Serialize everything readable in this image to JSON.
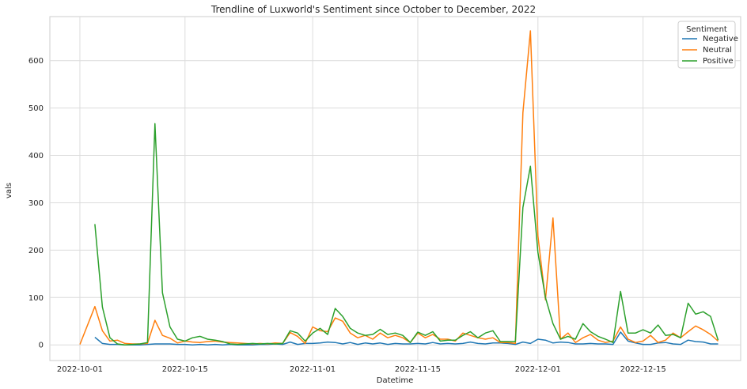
{
  "chart_data": {
    "type": "line",
    "title": "Trendline of Luxworld's Sentiment since October to December, 2022",
    "xlabel": "Datetime",
    "ylabel": "vals",
    "x_ticks": [
      "2022-10-01",
      "2022-10-15",
      "2022-11-01",
      "2022-11-15",
      "2022-12-01",
      "2022-12-15"
    ],
    "y_ticks": [
      0,
      100,
      200,
      300,
      400,
      500,
      600
    ],
    "xlim": [
      "2022-09-27",
      "2022-12-28"
    ],
    "ylim": [
      -33,
      693
    ],
    "grid": true,
    "legend": {
      "title": "Sentiment",
      "placement": "top-right"
    },
    "series": [
      {
        "name": "Negative",
        "color": "#1f77b4",
        "points": [
          [
            "2022-10-03",
            16
          ],
          [
            "2022-10-04",
            3
          ],
          [
            "2022-10-05",
            1
          ],
          [
            "2022-10-06",
            1
          ],
          [
            "2022-10-07",
            0
          ],
          [
            "2022-10-08",
            0
          ],
          [
            "2022-10-09",
            0
          ],
          [
            "2022-10-10",
            1
          ],
          [
            "2022-10-11",
            2
          ],
          [
            "2022-10-12",
            2
          ],
          [
            "2022-10-13",
            2
          ],
          [
            "2022-10-14",
            1
          ],
          [
            "2022-10-15",
            1
          ],
          [
            "2022-10-16",
            0
          ],
          [
            "2022-10-17",
            1
          ],
          [
            "2022-10-18",
            0
          ],
          [
            "2022-10-19",
            1
          ],
          [
            "2022-10-20",
            0
          ],
          [
            "2022-10-21",
            1
          ],
          [
            "2022-10-22",
            0
          ],
          [
            "2022-10-23",
            0
          ],
          [
            "2022-10-24",
            0
          ],
          [
            "2022-10-25",
            1
          ],
          [
            "2022-10-26",
            1
          ],
          [
            "2022-10-27",
            2
          ],
          [
            "2022-10-28",
            1
          ],
          [
            "2022-10-29",
            6
          ],
          [
            "2022-10-30",
            1
          ],
          [
            "2022-10-31",
            3
          ],
          [
            "2022-11-01",
            3
          ],
          [
            "2022-11-02",
            4
          ],
          [
            "2022-11-03",
            6
          ],
          [
            "2022-11-04",
            5
          ],
          [
            "2022-11-05",
            2
          ],
          [
            "2022-11-06",
            5
          ],
          [
            "2022-11-07",
            1
          ],
          [
            "2022-11-08",
            4
          ],
          [
            "2022-11-09",
            2
          ],
          [
            "2022-11-10",
            4
          ],
          [
            "2022-11-11",
            1
          ],
          [
            "2022-11-12",
            3
          ],
          [
            "2022-11-13",
            2
          ],
          [
            "2022-11-14",
            2
          ],
          [
            "2022-11-15",
            3
          ],
          [
            "2022-11-16",
            2
          ],
          [
            "2022-11-17",
            5
          ],
          [
            "2022-11-18",
            2
          ],
          [
            "2022-11-19",
            3
          ],
          [
            "2022-11-20",
            2
          ],
          [
            "2022-11-21",
            3
          ],
          [
            "2022-11-22",
            6
          ],
          [
            "2022-11-23",
            3
          ],
          [
            "2022-11-24",
            2
          ],
          [
            "2022-11-25",
            4
          ],
          [
            "2022-11-26",
            4
          ],
          [
            "2022-11-27",
            3
          ],
          [
            "2022-11-28",
            1
          ],
          [
            "2022-11-29",
            6
          ],
          [
            "2022-11-30",
            3
          ],
          [
            "2022-12-01",
            12
          ],
          [
            "2022-12-02",
            10
          ],
          [
            "2022-12-03",
            4
          ],
          [
            "2022-12-04",
            6
          ],
          [
            "2022-12-05",
            5
          ],
          [
            "2022-12-06",
            2
          ],
          [
            "2022-12-07",
            2
          ],
          [
            "2022-12-08",
            3
          ],
          [
            "2022-12-09",
            2
          ],
          [
            "2022-12-10",
            2
          ],
          [
            "2022-12-11",
            1
          ],
          [
            "2022-12-12",
            27
          ],
          [
            "2022-12-13",
            8
          ],
          [
            "2022-12-14",
            4
          ],
          [
            "2022-12-15",
            1
          ],
          [
            "2022-12-16",
            1
          ],
          [
            "2022-12-17",
            4
          ],
          [
            "2022-12-18",
            5
          ],
          [
            "2022-12-19",
            2
          ],
          [
            "2022-12-20",
            1
          ],
          [
            "2022-12-21",
            10
          ],
          [
            "2022-12-22",
            7
          ],
          [
            "2022-12-23",
            6
          ],
          [
            "2022-12-24",
            2
          ],
          [
            "2022-12-25",
            2
          ]
        ]
      },
      {
        "name": "Neutral",
        "color": "#ff7f0e",
        "points": [
          [
            "2022-10-01",
            1
          ],
          [
            "2022-10-03",
            81
          ],
          [
            "2022-10-04",
            30
          ],
          [
            "2022-10-05",
            8
          ],
          [
            "2022-10-06",
            10
          ],
          [
            "2022-10-07",
            3
          ],
          [
            "2022-10-08",
            2
          ],
          [
            "2022-10-09",
            2
          ],
          [
            "2022-10-10",
            3
          ],
          [
            "2022-10-11",
            52
          ],
          [
            "2022-10-12",
            20
          ],
          [
            "2022-10-13",
            14
          ],
          [
            "2022-10-14",
            4
          ],
          [
            "2022-10-15",
            8
          ],
          [
            "2022-10-16",
            6
          ],
          [
            "2022-10-17",
            5
          ],
          [
            "2022-10-18",
            7
          ],
          [
            "2022-10-19",
            8
          ],
          [
            "2022-10-20",
            6
          ],
          [
            "2022-10-21",
            5
          ],
          [
            "2022-10-22",
            4
          ],
          [
            "2022-10-23",
            3
          ],
          [
            "2022-10-24",
            2
          ],
          [
            "2022-10-25",
            3
          ],
          [
            "2022-10-26",
            2
          ],
          [
            "2022-10-27",
            4
          ],
          [
            "2022-10-28",
            3
          ],
          [
            "2022-10-29",
            26
          ],
          [
            "2022-10-30",
            18
          ],
          [
            "2022-10-31",
            3
          ],
          [
            "2022-11-01",
            38
          ],
          [
            "2022-11-02",
            30
          ],
          [
            "2022-11-03",
            28
          ],
          [
            "2022-11-04",
            57
          ],
          [
            "2022-11-05",
            50
          ],
          [
            "2022-11-06",
            25
          ],
          [
            "2022-11-07",
            15
          ],
          [
            "2022-11-08",
            20
          ],
          [
            "2022-11-09",
            12
          ],
          [
            "2022-11-10",
            25
          ],
          [
            "2022-11-11",
            15
          ],
          [
            "2022-11-12",
            20
          ],
          [
            "2022-11-13",
            15
          ],
          [
            "2022-11-14",
            5
          ],
          [
            "2022-11-15",
            25
          ],
          [
            "2022-11-16",
            15
          ],
          [
            "2022-11-17",
            22
          ],
          [
            "2022-11-18",
            12
          ],
          [
            "2022-11-19",
            12
          ],
          [
            "2022-11-20",
            8
          ],
          [
            "2022-11-21",
            25
          ],
          [
            "2022-11-22",
            20
          ],
          [
            "2022-11-23",
            15
          ],
          [
            "2022-11-24",
            12
          ],
          [
            "2022-11-25",
            15
          ],
          [
            "2022-11-26",
            5
          ],
          [
            "2022-11-27",
            5
          ],
          [
            "2022-11-28",
            3
          ],
          [
            "2022-11-29",
            490
          ],
          [
            "2022-11-30",
            663
          ],
          [
            "2022-12-01",
            230
          ],
          [
            "2022-12-02",
            95
          ],
          [
            "2022-12-03",
            268
          ],
          [
            "2022-12-04",
            12
          ],
          [
            "2022-12-05",
            25
          ],
          [
            "2022-12-06",
            5
          ],
          [
            "2022-12-07",
            15
          ],
          [
            "2022-12-08",
            22
          ],
          [
            "2022-12-09",
            10
          ],
          [
            "2022-12-10",
            5
          ],
          [
            "2022-12-11",
            8
          ],
          [
            "2022-12-12",
            38
          ],
          [
            "2022-12-13",
            12
          ],
          [
            "2022-12-14",
            5
          ],
          [
            "2022-12-15",
            8
          ],
          [
            "2022-12-16",
            20
          ],
          [
            "2022-12-17",
            5
          ],
          [
            "2022-12-18",
            10
          ],
          [
            "2022-12-19",
            25
          ],
          [
            "2022-12-20",
            15
          ],
          [
            "2022-12-21",
            28
          ],
          [
            "2022-12-22",
            40
          ],
          [
            "2022-12-23",
            32
          ],
          [
            "2022-12-24",
            22
          ],
          [
            "2022-12-25",
            8
          ]
        ]
      },
      {
        "name": "Positive",
        "color": "#2ca02c",
        "points": [
          [
            "2022-10-03",
            255
          ],
          [
            "2022-10-04",
            80
          ],
          [
            "2022-10-05",
            15
          ],
          [
            "2022-10-06",
            2
          ],
          [
            "2022-10-07",
            0
          ],
          [
            "2022-10-08",
            1
          ],
          [
            "2022-10-09",
            2
          ],
          [
            "2022-10-10",
            5
          ],
          [
            "2022-10-11",
            467
          ],
          [
            "2022-10-12",
            110
          ],
          [
            "2022-10-13",
            38
          ],
          [
            "2022-10-14",
            12
          ],
          [
            "2022-10-15",
            8
          ],
          [
            "2022-10-16",
            15
          ],
          [
            "2022-10-17",
            18
          ],
          [
            "2022-10-18",
            12
          ],
          [
            "2022-10-19",
            10
          ],
          [
            "2022-10-20",
            7
          ],
          [
            "2022-10-21",
            2
          ],
          [
            "2022-10-22",
            1
          ],
          [
            "2022-10-23",
            2
          ],
          [
            "2022-10-24",
            3
          ],
          [
            "2022-10-25",
            2
          ],
          [
            "2022-10-26",
            3
          ],
          [
            "2022-10-27",
            2
          ],
          [
            "2022-10-28",
            3
          ],
          [
            "2022-10-29",
            30
          ],
          [
            "2022-10-30",
            25
          ],
          [
            "2022-10-31",
            8
          ],
          [
            "2022-11-01",
            25
          ],
          [
            "2022-11-02",
            35
          ],
          [
            "2022-11-03",
            22
          ],
          [
            "2022-11-04",
            77
          ],
          [
            "2022-11-05",
            60
          ],
          [
            "2022-11-06",
            35
          ],
          [
            "2022-11-07",
            25
          ],
          [
            "2022-11-08",
            20
          ],
          [
            "2022-11-09",
            22
          ],
          [
            "2022-11-10",
            33
          ],
          [
            "2022-11-11",
            22
          ],
          [
            "2022-11-12",
            25
          ],
          [
            "2022-11-13",
            20
          ],
          [
            "2022-11-14",
            5
          ],
          [
            "2022-11-15",
            27
          ],
          [
            "2022-11-16",
            20
          ],
          [
            "2022-11-17",
            28
          ],
          [
            "2022-11-18",
            8
          ],
          [
            "2022-11-19",
            10
          ],
          [
            "2022-11-20",
            10
          ],
          [
            "2022-11-21",
            20
          ],
          [
            "2022-11-22",
            28
          ],
          [
            "2022-11-23",
            15
          ],
          [
            "2022-11-24",
            25
          ],
          [
            "2022-11-25",
            30
          ],
          [
            "2022-11-26",
            7
          ],
          [
            "2022-11-27",
            7
          ],
          [
            "2022-11-28",
            7
          ],
          [
            "2022-11-29",
            290
          ],
          [
            "2022-11-30",
            377
          ],
          [
            "2022-12-01",
            195
          ],
          [
            "2022-12-02",
            100
          ],
          [
            "2022-12-03",
            45
          ],
          [
            "2022-12-04",
            12
          ],
          [
            "2022-12-05",
            18
          ],
          [
            "2022-12-06",
            12
          ],
          [
            "2022-12-07",
            45
          ],
          [
            "2022-12-08",
            28
          ],
          [
            "2022-12-09",
            18
          ],
          [
            "2022-12-10",
            12
          ],
          [
            "2022-12-11",
            5
          ],
          [
            "2022-12-12",
            113
          ],
          [
            "2022-12-13",
            25
          ],
          [
            "2022-12-14",
            25
          ],
          [
            "2022-12-15",
            32
          ],
          [
            "2022-12-16",
            25
          ],
          [
            "2022-12-17",
            42
          ],
          [
            "2022-12-18",
            20
          ],
          [
            "2022-12-19",
            22
          ],
          [
            "2022-12-20",
            15
          ],
          [
            "2022-12-21",
            88
          ],
          [
            "2022-12-22",
            65
          ],
          [
            "2022-12-23",
            70
          ],
          [
            "2022-12-24",
            60
          ],
          [
            "2022-12-25",
            10
          ]
        ]
      }
    ]
  }
}
